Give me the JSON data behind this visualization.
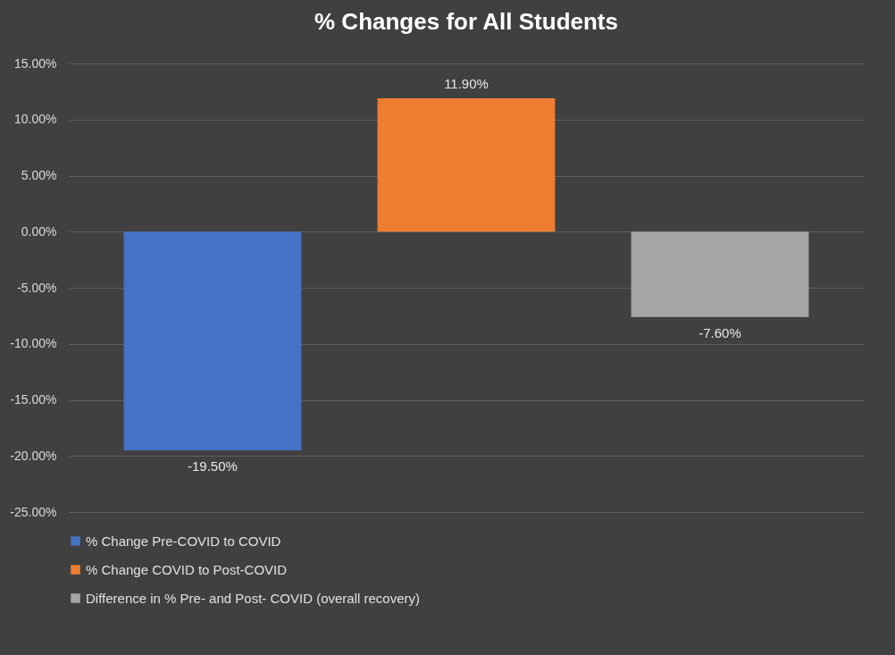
{
  "chart_data": {
    "type": "bar",
    "title": "% Changes for All Students",
    "categories": [
      null
    ],
    "series": [
      {
        "name": "% Change Pre-COVID to COVID",
        "color": "#4472c4",
        "values": [
          -19.5
        ],
        "value_labels": [
          "-19.50%"
        ]
      },
      {
        "name": "% Change COVID to Post-COVID",
        "color": "#ed7d31",
        "values": [
          11.9
        ],
        "value_labels": [
          "11.90%"
        ]
      },
      {
        "name": "Difference in % Pre- and Post- COVID (overall recovery)",
        "color": "#a5a5a5",
        "values": [
          -7.6
        ],
        "value_labels": [
          "-7.60%"
        ]
      }
    ],
    "ylim": [
      -25,
      15
    ],
    "yticks": [
      {
        "value": -25,
        "label": "-25.00%"
      },
      {
        "value": -20,
        "label": "-20.00%"
      },
      {
        "value": -15,
        "label": "-15.00%"
      },
      {
        "value": -10,
        "label": "-10.00%"
      },
      {
        "value": -5,
        "label": "-5.00%"
      },
      {
        "value": 0,
        "label": "0.00%"
      },
      {
        "value": 5,
        "label": "5.00%"
      },
      {
        "value": 10,
        "label": "10.00%"
      },
      {
        "value": 15,
        "label": "15.00%"
      }
    ],
    "grid": true,
    "legend": "bottom"
  }
}
